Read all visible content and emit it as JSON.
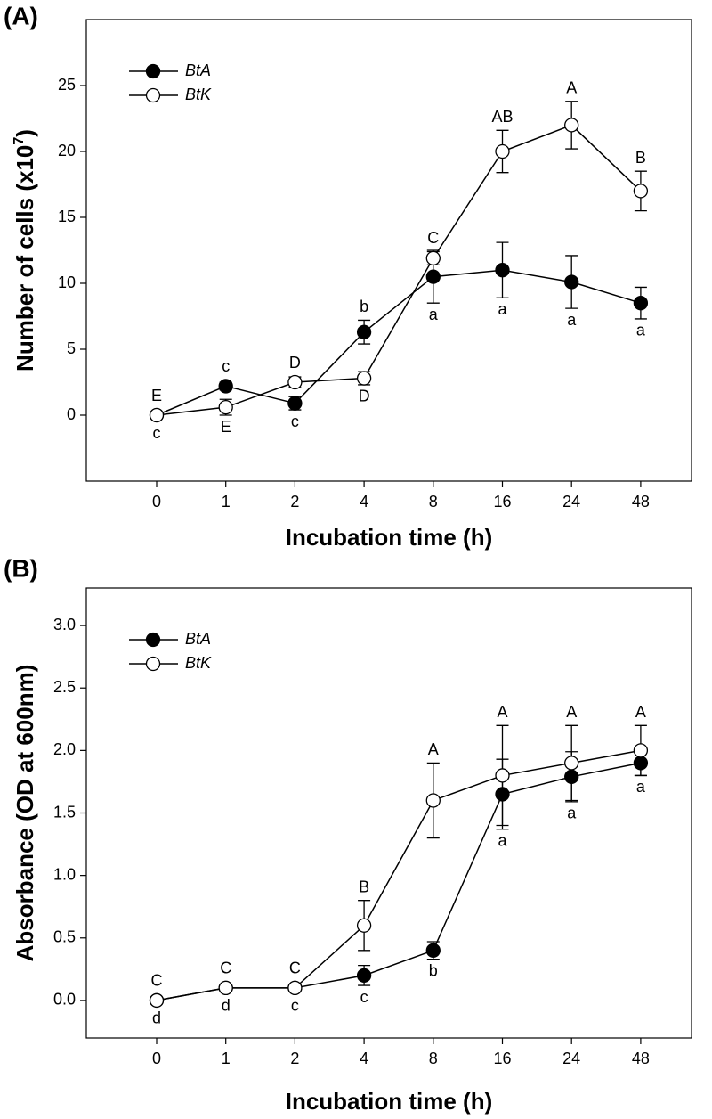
{
  "chart_data": [
    {
      "type": "line",
      "label": "(A)",
      "ylabel": [
        "Number of cells (x10",
        "7",
        ")"
      ],
      "xlabel": "Incubation time (h)",
      "categories": [
        "0",
        "1",
        "2",
        "4",
        "8",
        "16",
        "24",
        "48"
      ],
      "ylim": [
        -5,
        30
      ],
      "yticks": [
        0,
        5,
        10,
        15,
        20,
        25
      ],
      "legend": "upper-left",
      "series": [
        {
          "name": "BtA",
          "color": "#000000",
          "marker_fill": "#000000",
          "values": [
            0,
            2.2,
            0.9,
            6.3,
            10.5,
            11,
            10.1,
            8.5
          ],
          "errors": [
            0.1,
            0.3,
            0.5,
            0.9,
            2,
            2.1,
            2,
            1.2
          ],
          "point_labels": [
            "c",
            "c",
            "c",
            "b",
            "a",
            "a",
            "a",
            "a"
          ]
        },
        {
          "name": "BtK",
          "color": "#000000",
          "marker_fill": "#ffffff",
          "values": [
            0,
            0.6,
            2.5,
            2.8,
            11.9,
            20,
            22,
            17
          ],
          "errors": [
            0.1,
            0.6,
            0.4,
            0.5,
            0.5,
            1.6,
            1.8,
            1.5
          ],
          "point_labels": [
            "E",
            "E",
            "D",
            "D",
            "C",
            "AB",
            "A",
            "B"
          ]
        }
      ]
    },
    {
      "type": "line",
      "label": "(B)",
      "ylabel": [
        "Absorbance (OD at 600nm)"
      ],
      "xlabel": "Incubation time (h)",
      "categories": [
        "0",
        "1",
        "2",
        "4",
        "8",
        "16",
        "24",
        "48"
      ],
      "ylim": [
        -0.3,
        3.3
      ],
      "yticks": [
        {
          "value": 0,
          "label": "0.0"
        },
        0.5,
        {
          "value": 1,
          "label": "1.0"
        },
        1.5,
        {
          "value": 2,
          "label": "2.0"
        },
        2.5,
        {
          "value": 3,
          "label": "3.0"
        }
      ],
      "legend": "upper-left",
      "series": [
        {
          "name": "BtA",
          "color": "#000000",
          "marker_fill": "#000000",
          "values": [
            0,
            0.1,
            0.1,
            0.2,
            0.4,
            1.65,
            1.79,
            1.9
          ],
          "errors": [
            0,
            0,
            0,
            0.08,
            0.07,
            0.28,
            0.2,
            0.1
          ],
          "point_labels": [
            "d",
            "d",
            "c",
            "c",
            "b",
            "a",
            "a",
            "a"
          ]
        },
        {
          "name": "BtK",
          "color": "#000000",
          "marker_fill": "#ffffff",
          "values": [
            0,
            0.1,
            0.1,
            0.6,
            1.6,
            1.8,
            1.9,
            2
          ],
          "errors": [
            0,
            0,
            0,
            0.2,
            0.3,
            0.4,
            0.3,
            0.2
          ],
          "point_labels": [
            "C",
            "C",
            "C",
            "B",
            "A",
            "A",
            "A",
            "A"
          ]
        }
      ]
    }
  ]
}
